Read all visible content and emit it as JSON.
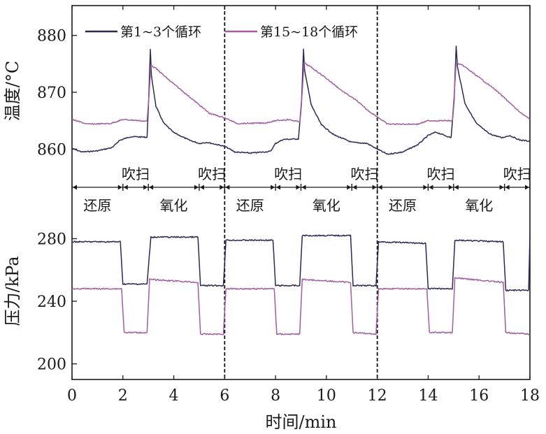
{
  "chart_data": {
    "type": "line",
    "x_axis": {
      "label": "时间/min",
      "range": [
        0,
        18
      ],
      "ticks": [
        0,
        2,
        4,
        6,
        8,
        10,
        12,
        14,
        16,
        18
      ],
      "tick_labels": [
        "0",
        "2",
        "4",
        "6",
        "8",
        "10",
        "12",
        "14",
        "16",
        "18"
      ]
    },
    "cycle_dividers": [
      6,
      12
    ],
    "legend": [
      "第1~3个循环",
      "第15~18个循环"
    ],
    "colors": {
      "series1": "#2b2a55",
      "series2": "#a25ca3",
      "axis": "#1a1a1a"
    },
    "panels": {
      "temperature": {
        "ylabel": "温度/°C",
        "ylim": [
          855.5,
          885
        ],
        "ticks": [
          860,
          870,
          880
        ],
        "tick_labels": [
          "860",
          "870",
          "880"
        ],
        "series": [
          {
            "name": "第1~3个循环",
            "points": [
              [
                0,
                860.1
              ],
              [
                0.4,
                859.5
              ],
              [
                1.0,
                859.7
              ],
              [
                1.6,
                860.3
              ],
              [
                1.85,
                861.5
              ],
              [
                2.3,
                862.2
              ],
              [
                2.95,
                862.1
              ],
              [
                3.0,
                867
              ],
              [
                3.08,
                877.5
              ],
              [
                3.12,
                873
              ],
              [
                3.3,
                867.5
              ],
              [
                3.6,
                864.6
              ],
              [
                4.0,
                862.9
              ],
              [
                4.6,
                861.6
              ],
              [
                5.0,
                861.0
              ],
              [
                5.3,
                861.2
              ],
              [
                6.0,
                860.5
              ],
              [
                6.4,
                859.5
              ],
              [
                7.0,
                859.3
              ],
              [
                7.8,
                859.6
              ],
              [
                8.0,
                861.0
              ],
              [
                8.3,
                861.7
              ],
              [
                8.9,
                861.8
              ],
              [
                9.02,
                868
              ],
              [
                9.1,
                877.5
              ],
              [
                9.14,
                874
              ],
              [
                9.4,
                867.8
              ],
              [
                9.8,
                864.3
              ],
              [
                10.3,
                862.5
              ],
              [
                11.0,
                861.2
              ],
              [
                11.6,
                861.0
              ],
              [
                12.0,
                860.0
              ],
              [
                12.4,
                859.1
              ],
              [
                13.0,
                859.5
              ],
              [
                13.6,
                860.8
              ],
              [
                14.0,
                862.4
              ],
              [
                14.3,
                863
              ],
              [
                14.9,
                862.0
              ],
              [
                15.02,
                868.5
              ],
              [
                15.1,
                878.2
              ],
              [
                15.15,
                874.5
              ],
              [
                15.45,
                868
              ],
              [
                15.9,
                864.5
              ],
              [
                16.4,
                862.7
              ],
              [
                16.9,
                862.0
              ],
              [
                17.2,
                862.4
              ],
              [
                17.6,
                861.6
              ],
              [
                18.0,
                861.4
              ]
            ]
          },
          {
            "name": "第15~18个循环",
            "points": [
              [
                0,
                865.2
              ],
              [
                0.6,
                864.4
              ],
              [
                1.5,
                864.5
              ],
              [
                2.0,
                865.2
              ],
              [
                2.4,
                865.1
              ],
              [
                2.95,
                864.9
              ],
              [
                3.02,
                869
              ],
              [
                3.1,
                874.7
              ],
              [
                3.3,
                874.2
              ],
              [
                3.8,
                872.2
              ],
              [
                4.4,
                870.0
              ],
              [
                5.0,
                867.8
              ],
              [
                5.4,
                866.3
              ],
              [
                6.0,
                865.5
              ],
              [
                6.5,
                864.5
              ],
              [
                7.6,
                864.6
              ],
              [
                8.0,
                865.0
              ],
              [
                8.5,
                865.2
              ],
              [
                8.95,
                864.8
              ],
              [
                9.05,
                870
              ],
              [
                9.12,
                875.2
              ],
              [
                9.4,
                874.4
              ],
              [
                9.9,
                872.8
              ],
              [
                10.6,
                870.3
              ],
              [
                11.2,
                868.5
              ],
              [
                11.6,
                866.9
              ],
              [
                12.0,
                865.7
              ],
              [
                12.4,
                864.4
              ],
              [
                13.6,
                864.4
              ],
              [
                14.0,
                865.0
              ],
              [
                14.4,
                865.0
              ],
              [
                14.95,
                865.0
              ],
              [
                15.03,
                870
              ],
              [
                15.1,
                875.2
              ],
              [
                15.4,
                874.6
              ],
              [
                16.0,
                872.6
              ],
              [
                16.6,
                870.6
              ],
              [
                17.1,
                868.6
              ],
              [
                17.5,
                866.9
              ],
              [
                18.0,
                865.2
              ]
            ]
          }
        ]
      },
      "pressure": {
        "ylabel": "压力/kPa",
        "ylim": [
          190,
          303
        ],
        "ticks": [
          200,
          240,
          280
        ],
        "tick_labels": [
          "200",
          "240",
          "280"
        ],
        "series": [
          {
            "name": "第1~3个循环",
            "points": [
              [
                0,
                278
              ],
              [
                1.9,
                278
              ],
              [
                2.0,
                251
              ],
              [
                2.95,
                251
              ],
              [
                3.1,
                281
              ],
              [
                4.95,
                281
              ],
              [
                5.05,
                250
              ],
              [
                5.95,
                250
              ],
              [
                6.05,
                279
              ],
              [
                7.9,
                279
              ],
              [
                8.0,
                250
              ],
              [
                8.95,
                250
              ],
              [
                9.05,
                282
              ],
              [
                10.95,
                282
              ],
              [
                11.05,
                250
              ],
              [
                11.95,
                250
              ],
              [
                12.05,
                278
              ],
              [
                13.9,
                277
              ],
              [
                14.0,
                248
              ],
              [
                14.95,
                248
              ],
              [
                15.05,
                279
              ],
              [
                16.95,
                278
              ],
              [
                17.05,
                247
              ],
              [
                17.95,
                247
              ],
              [
                18.0,
                282
              ]
            ]
          },
          {
            "name": "第15~18个循环",
            "points": [
              [
                0,
                248
              ],
              [
                1.95,
                248
              ],
              [
                2.05,
                220
              ],
              [
                2.95,
                220
              ],
              [
                3.05,
                254
              ],
              [
                4.95,
                252
              ],
              [
                5.05,
                219
              ],
              [
                5.95,
                219
              ],
              [
                6.05,
                248
              ],
              [
                7.95,
                248
              ],
              [
                8.05,
                219
              ],
              [
                8.95,
                219
              ],
              [
                9.05,
                254
              ],
              [
                10.95,
                252
              ],
              [
                11.05,
                220
              ],
              [
                11.95,
                219
              ],
              [
                12.05,
                248
              ],
              [
                13.95,
                248
              ],
              [
                14.05,
                220
              ],
              [
                14.95,
                220
              ],
              [
                15.05,
                255
              ],
              [
                16.95,
                252
              ],
              [
                17.05,
                220
              ],
              [
                17.95,
                219
              ],
              [
                18.0,
                218
              ]
            ]
          }
        ]
      }
    },
    "phase_labels": {
      "reduction": "还原",
      "oxidation": "氧化",
      "purge": "吹扫"
    },
    "phase_bands": [
      {
        "phase": "reduction",
        "start": 0,
        "end": 2
      },
      {
        "phase": "purge",
        "start": 2,
        "end": 3
      },
      {
        "phase": "oxidation",
        "start": 3,
        "end": 5
      },
      {
        "phase": "purge",
        "start": 5,
        "end": 6
      },
      {
        "phase": "reduction",
        "start": 6,
        "end": 8
      },
      {
        "phase": "purge",
        "start": 8,
        "end": 9
      },
      {
        "phase": "oxidation",
        "start": 9,
        "end": 11
      },
      {
        "phase": "purge",
        "start": 11,
        "end": 12
      },
      {
        "phase": "reduction",
        "start": 12,
        "end": 14
      },
      {
        "phase": "purge",
        "start": 14,
        "end": 15
      },
      {
        "phase": "oxidation",
        "start": 15,
        "end": 17
      },
      {
        "phase": "purge",
        "start": 17,
        "end": 18
      }
    ]
  }
}
